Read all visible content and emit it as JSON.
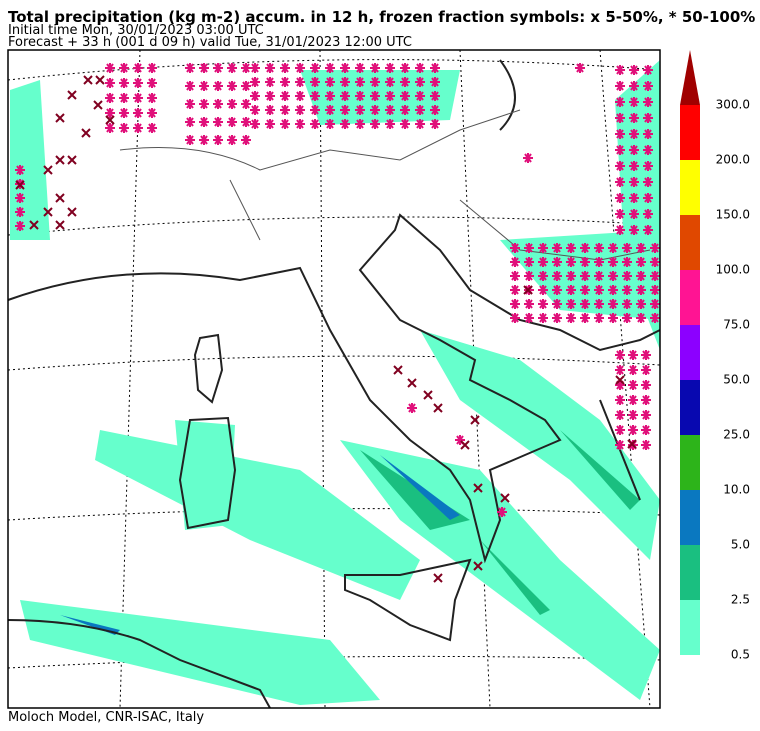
{
  "header": {
    "title": "Total precipitation (kg m-2) accum. in 12 h, frozen fraction symbols: x 5-50%, * 50-100%",
    "initial_time": "Initial time  Mon, 30/01/2023  03:00 UTC",
    "forecast": "Forecast  +  33 h  (001 d 09 h)  valid Tue, 31/01/2023 12:00 UTC"
  },
  "colorbar": {
    "labels": [
      "0.5",
      "2.5",
      "5.0",
      "10.0",
      "25.0",
      "50.0",
      "75.0",
      "100.0",
      "150.0",
      "200.0",
      "300.0"
    ],
    "colors": [
      "#66ffcc",
      "#1abf80",
      "#0a78c0",
      "#2db41a",
      "#0808b0",
      "#8c00ff",
      "#ff1493",
      "#e04800",
      "#ffff00",
      "#ff0000"
    ],
    "over_color": "#a00000"
  },
  "footer": "Moloch Model, CNR-ISAC, Italy"
}
